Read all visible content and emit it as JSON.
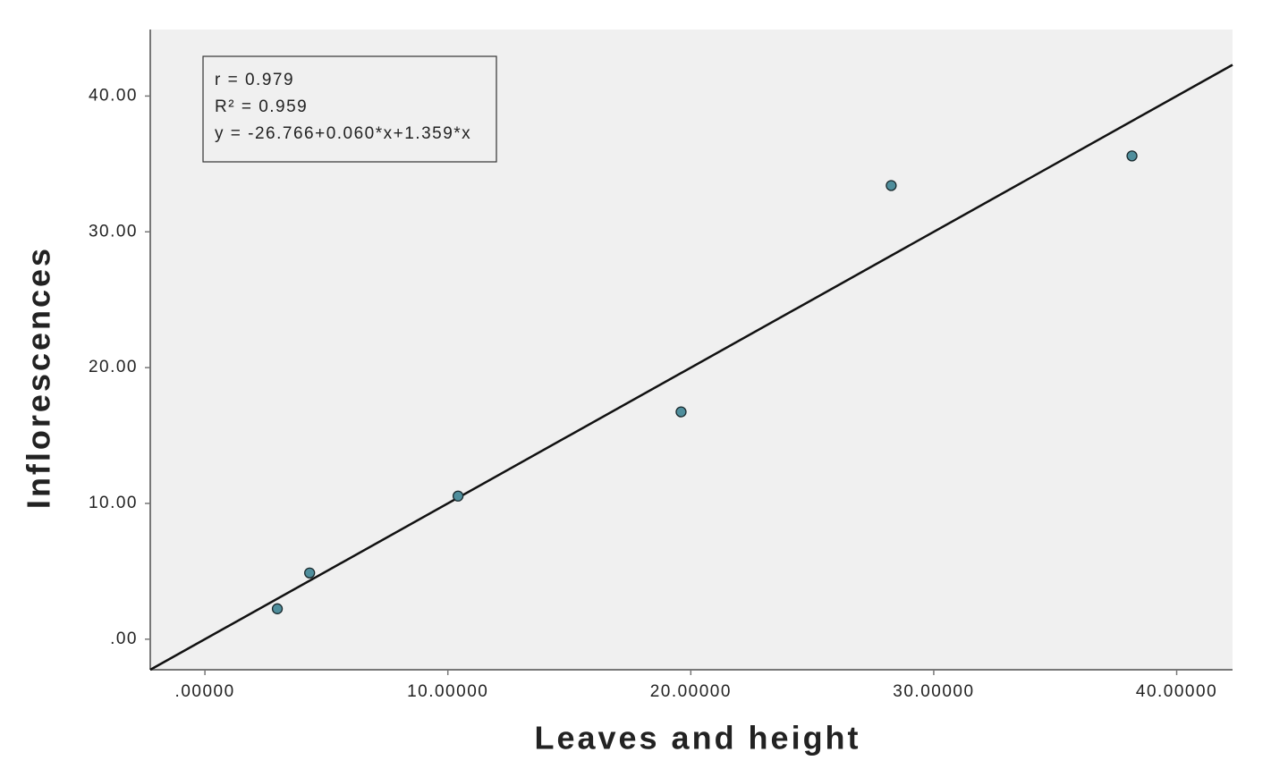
{
  "chart_data": {
    "type": "scatter",
    "x_label": "Leaves and height",
    "y_label": "Inflorescences",
    "x": [
      2.98,
      4.31,
      10.42,
      19.6,
      28.25,
      38.16
    ],
    "values": [
      2.24,
      4.88,
      10.54,
      16.74,
      33.41,
      35.59
    ],
    "color": "#4f8e9c",
    "fit_line": {
      "x": [
        -2.25,
        42.3
      ],
      "values": [
        -2.25,
        42.3
      ],
      "color": "#111111"
    },
    "annotation": [
      "r = 0.979",
      "R² = 0.959",
      "y = -26.766+0.060*x+1.359*x"
    ],
    "xlim": [
      -2.25,
      42.3
    ],
    "ylim": [
      -2.25,
      44.9
    ],
    "xticks": [
      {
        "value": 0,
        "label": ".00000"
      },
      {
        "value": 10,
        "label": "10.00000"
      },
      {
        "value": 20,
        "label": "20.00000"
      },
      {
        "value": 30,
        "label": "30.00000"
      },
      {
        "value": 40,
        "label": "40.00000"
      }
    ],
    "yticks": [
      {
        "value": 0,
        "label": ".00"
      },
      {
        "value": 10,
        "label": "10.00"
      },
      {
        "value": 20,
        "label": "20.00"
      },
      {
        "value": 30,
        "label": "30.00"
      },
      {
        "value": 40,
        "label": "40.00"
      }
    ],
    "grid": false
  }
}
